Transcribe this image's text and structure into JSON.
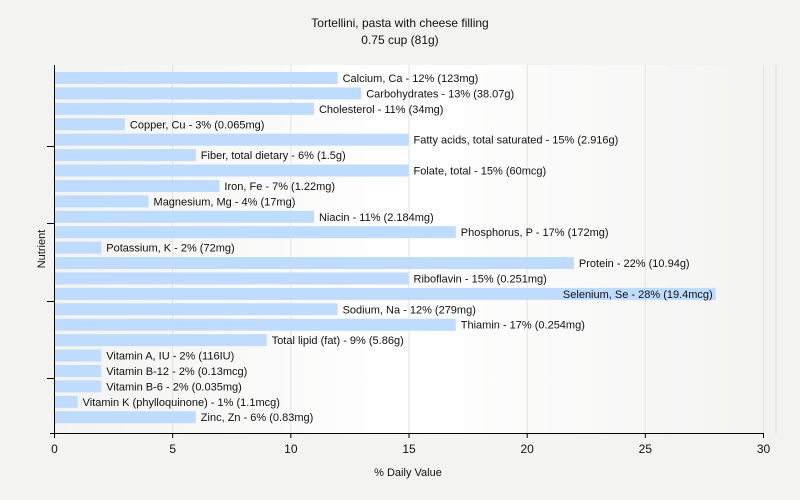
{
  "chart_data": {
    "type": "bar",
    "orientation": "horizontal",
    "title": "Tortellini, pasta with cheese filling",
    "subtitle": "0.75 cup (81g)",
    "xlabel": "% Daily Value",
    "ylabel": "Nutrient",
    "xlim": [
      0,
      30
    ],
    "xticks": [
      0,
      5,
      10,
      15,
      20,
      25,
      30
    ],
    "grid": true,
    "bar_color": "#bfdbfd",
    "categories": [
      "Calcium, Ca",
      "Carbohydrates",
      "Cholesterol",
      "Copper, Cu",
      "Fatty acids, total saturated",
      "Fiber, total dietary",
      "Folate, total",
      "Iron, Fe",
      "Magnesium, Mg",
      "Niacin",
      "Phosphorus, P",
      "Potassium, K",
      "Protein",
      "Riboflavin",
      "Selenium, Se",
      "Sodium, Na",
      "Thiamin",
      "Total lipid (fat)",
      "Vitamin A, IU",
      "Vitamin B-12",
      "Vitamin B-6",
      "Vitamin K (phylloquinone)",
      "Zinc, Zn"
    ],
    "values": [
      12,
      13,
      11,
      3,
      15,
      6,
      15,
      7,
      4,
      11,
      17,
      2,
      22,
      15,
      28,
      12,
      17,
      9,
      2,
      2,
      2,
      1,
      6
    ],
    "labels": [
      "Calcium, Ca - 12% (123mg)",
      "Carbohydrates - 13% (38.07g)",
      "Cholesterol - 11% (34mg)",
      "Copper, Cu - 3% (0.065mg)",
      "Fatty acids, total saturated - 15% (2.916g)",
      "Fiber, total dietary - 6% (1.5g)",
      "Folate, total - 15% (60mcg)",
      "Iron, Fe - 7% (1.22mg)",
      "Magnesium, Mg - 4% (17mg)",
      "Niacin - 11% (2.184mg)",
      "Phosphorus, P - 17% (172mg)",
      "Potassium, K - 2% (72mg)",
      "Protein - 22% (10.94g)",
      "Riboflavin - 15% (0.251mg)",
      "Selenium, Se - 28% (19.4mcg)",
      "Sodium, Na - 12% (279mg)",
      "Thiamin - 17% (0.254mg)",
      "Total lipid (fat) - 9% (5.86g)",
      "Vitamin A, IU - 2% (116IU)",
      "Vitamin B-12 - 2% (0.13mcg)",
      "Vitamin B-6 - 2% (0.035mg)",
      "Vitamin K (phylloquinone) - 1% (1.1mcg)",
      "Zinc, Zn - 6% (0.83mg)"
    ]
  }
}
